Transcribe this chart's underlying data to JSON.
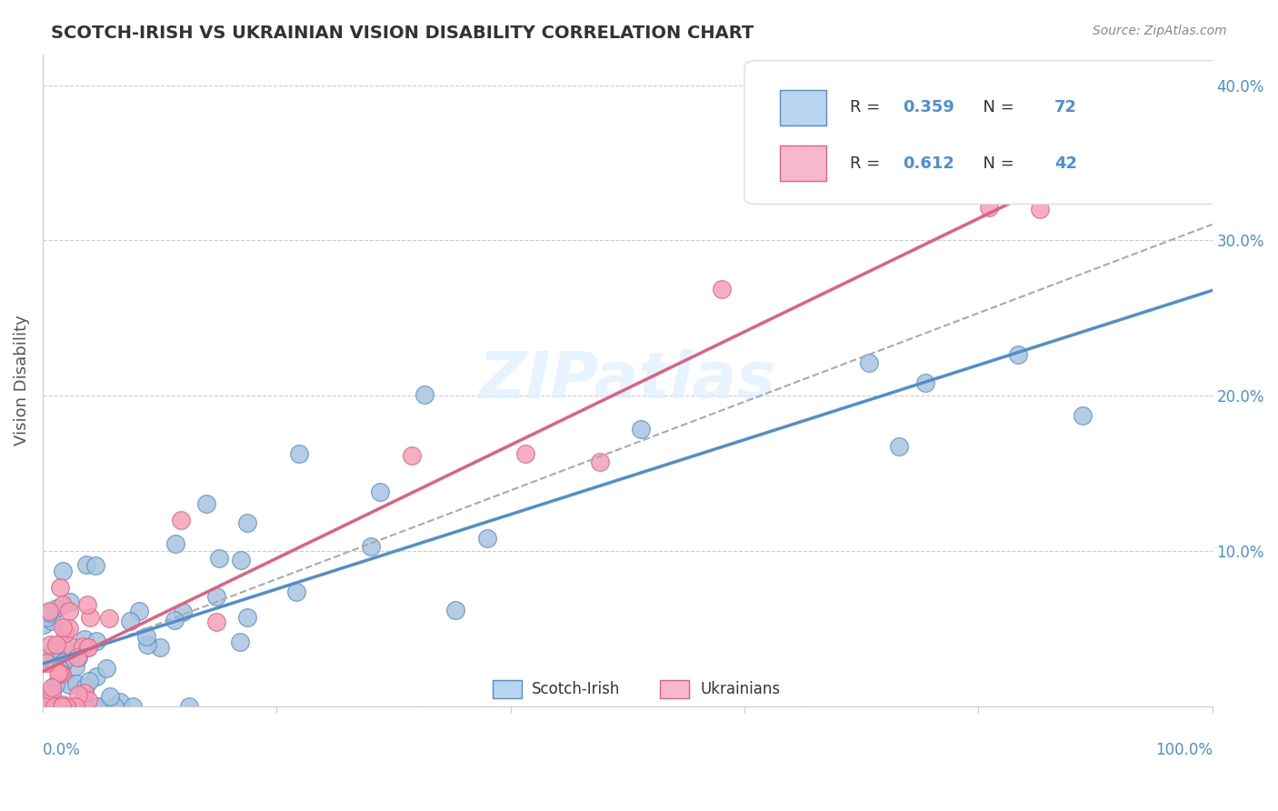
{
  "title": "SCOTCH-IRISH VS UKRAINIAN VISION DISABILITY CORRELATION CHART",
  "source": "Source: ZipAtlas.com",
  "ylabel": "Vision Disability",
  "xlim": [
    0.0,
    1.0
  ],
  "ylim": [
    0.0,
    0.42
  ],
  "scotch_irish_R": 0.359,
  "scotch_irish_N": 72,
  "ukrainian_R": 0.612,
  "ukrainian_N": 42,
  "scotch_irish_color": "#a8c4e0",
  "ukrainian_color": "#f4a0b8",
  "scotch_irish_line_color": "#4f8fcc",
  "ukrainian_line_color": "#e06080",
  "legend_box_color_scotch": "#b8d4f0",
  "legend_box_color_ukr": "#f8b8cc",
  "watermark": "ZIPatlas",
  "background_color": "#ffffff",
  "grid_color": "#cccccc",
  "title_color": "#333333",
  "axis_label_color": "#4a90d9"
}
